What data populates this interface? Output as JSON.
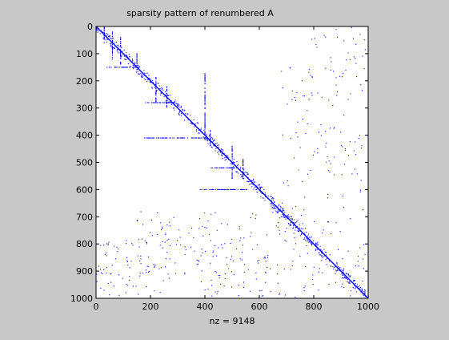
{
  "figure": {
    "background": "#c8c8c8"
  },
  "chart_data": {
    "type": "scatter",
    "title": "sparsity pattern of renumbered A",
    "xlabel": "nz = 9148",
    "ylabel": "",
    "xlim": [
      0,
      1000
    ],
    "ylim": [
      0,
      1000
    ],
    "y_reversed": true,
    "x_ticks": [
      "0",
      "200",
      "400",
      "600",
      "800",
      "1000"
    ],
    "y_ticks": [
      "0",
      "100",
      "200",
      "300",
      "400",
      "500",
      "600",
      "700",
      "800",
      "900",
      "1000"
    ],
    "marker_color": "#0000ff",
    "nz": 9148,
    "diagonal": {
      "from": 0,
      "to": 1000
    },
    "blocks": [
      {
        "x": [
          790,
          990
        ],
        "y": [
          0,
          150
        ],
        "density": 0.008
      },
      {
        "x": [
          680,
          990
        ],
        "y": [
          150,
          1000
        ],
        "density": 0.007
      },
      {
        "x": [
          150,
          680
        ],
        "y": [
          680,
          940
        ],
        "density": 0.006
      },
      {
        "x": [
          0,
          150
        ],
        "y": [
          780,
          990
        ],
        "density": 0.009
      },
      {
        "x": [
          400,
          680
        ],
        "y": [
          940,
          1000
        ],
        "density": 0.006
      }
    ],
    "spikes": [
      {
        "x": 30,
        "y": [
          0,
          60
        ],
        "kind": "v"
      },
      {
        "x": 60,
        "y": [
          20,
          120
        ],
        "kind": "v"
      },
      {
        "x": 90,
        "y": [
          40,
          140
        ],
        "kind": "v"
      },
      {
        "x": 150,
        "y": [
          100,
          160
        ],
        "kind": "v"
      },
      {
        "x": 220,
        "y": [
          180,
          280
        ],
        "kind": "v"
      },
      {
        "x": 260,
        "y": [
          220,
          300
        ],
        "kind": "v"
      },
      {
        "x": 400,
        "y": [
          170,
          420
        ],
        "kind": "v"
      },
      {
        "x": 420,
        "y": [
          380,
          440
        ],
        "kind": "v"
      },
      {
        "x": 500,
        "y": [
          440,
          560
        ],
        "kind": "v"
      },
      {
        "x": 540,
        "y": [
          480,
          560
        ],
        "kind": "v"
      },
      {
        "y": 150,
        "x": [
          40,
          160
        ],
        "kind": "h"
      },
      {
        "y": 280,
        "x": [
          180,
          290
        ],
        "kind": "h"
      },
      {
        "y": 410,
        "x": [
          170,
          400
        ],
        "kind": "h"
      },
      {
        "y": 520,
        "x": [
          420,
          510
        ],
        "kind": "h"
      },
      {
        "y": 600,
        "x": [
          380,
          560
        ],
        "kind": "h"
      }
    ]
  }
}
